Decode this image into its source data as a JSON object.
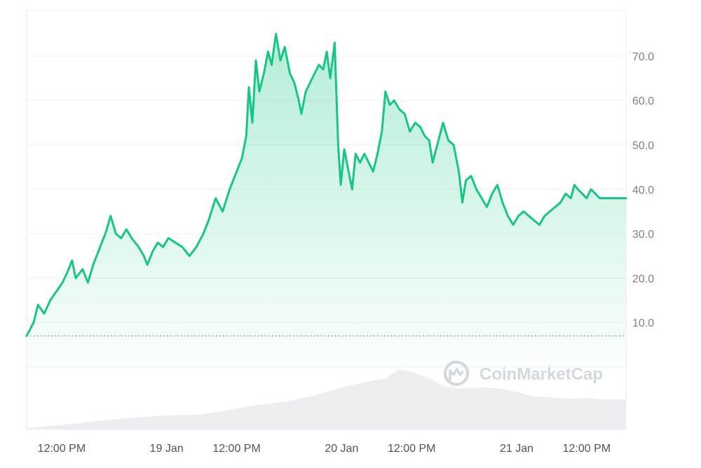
{
  "watermark": {
    "brand": "CoinMarketCap",
    "logo_icon": "coinmarketcap-logo-icon"
  },
  "colors": {
    "line": "#16c784",
    "area_top": "#16c784",
    "baseline": "#8a939f",
    "volume": "#eceef2",
    "grid": "#eff1f4",
    "axis_text": "#7a8392"
  },
  "chart_data": {
    "type": "area",
    "title": "",
    "xlabel": "",
    "ylabel": "",
    "ylim": [
      0,
      80
    ],
    "x_range": [
      0,
      68.5
    ],
    "y_ticks": [
      10,
      20,
      30,
      40,
      50,
      60,
      70
    ],
    "y_tick_labels": [
      "10.0",
      "20.0",
      "30.0",
      "40.0",
      "50.0",
      "60.0",
      "70.0"
    ],
    "x_ticks": [
      {
        "label": "12:00 PM",
        "t": 4
      },
      {
        "label": "19 Jan",
        "t": 16
      },
      {
        "label": "12:00 PM",
        "t": 24
      },
      {
        "label": "20 Jan",
        "t": 36
      },
      {
        "label": "12:00 PM",
        "t": 44
      },
      {
        "label": "21 Jan",
        "t": 56
      },
      {
        "label": "12:00 PM",
        "t": 64
      }
    ],
    "baseline_value": 7,
    "grid": true,
    "series": [
      {
        "points": [
          [
            0,
            7
          ],
          [
            0.8,
            10
          ],
          [
            1.3,
            14
          ],
          [
            2,
            12
          ],
          [
            2.7,
            15
          ],
          [
            3.4,
            17
          ],
          [
            4.1,
            19
          ],
          [
            4.8,
            22
          ],
          [
            5.2,
            24
          ],
          [
            5.6,
            20
          ],
          [
            6.4,
            22
          ],
          [
            7,
            19
          ],
          [
            7.6,
            23
          ],
          [
            8.4,
            27
          ],
          [
            9,
            30
          ],
          [
            9.6,
            34
          ],
          [
            10.2,
            30
          ],
          [
            10.8,
            29
          ],
          [
            11.4,
            31
          ],
          [
            12,
            29
          ],
          [
            12.8,
            27
          ],
          [
            13.4,
            25
          ],
          [
            13.8,
            23
          ],
          [
            14.4,
            26
          ],
          [
            15,
            28
          ],
          [
            15.6,
            27
          ],
          [
            16.2,
            29
          ],
          [
            17,
            28
          ],
          [
            17.8,
            27
          ],
          [
            18.6,
            25
          ],
          [
            19.4,
            27
          ],
          [
            20.2,
            30
          ],
          [
            20.8,
            33
          ],
          [
            21.6,
            38
          ],
          [
            22.4,
            35
          ],
          [
            23.2,
            40
          ],
          [
            24,
            44
          ],
          [
            24.6,
            47
          ],
          [
            25.1,
            52
          ],
          [
            25.4,
            63
          ],
          [
            25.8,
            55
          ],
          [
            26.2,
            69
          ],
          [
            26.6,
            62
          ],
          [
            27.1,
            66
          ],
          [
            27.6,
            71
          ],
          [
            28,
            68
          ],
          [
            28.5,
            75
          ],
          [
            29,
            69
          ],
          [
            29.5,
            72
          ],
          [
            30.1,
            66
          ],
          [
            30.6,
            64
          ],
          [
            31.1,
            60
          ],
          [
            31.4,
            57
          ],
          [
            31.9,
            62
          ],
          [
            32.4,
            64
          ],
          [
            32.9,
            66
          ],
          [
            33.4,
            68
          ],
          [
            33.9,
            67
          ],
          [
            34.3,
            71
          ],
          [
            34.7,
            65
          ],
          [
            35.2,
            73
          ],
          [
            35.6,
            50
          ],
          [
            35.9,
            41
          ],
          [
            36.3,
            49
          ],
          [
            36.8,
            44
          ],
          [
            37.2,
            40
          ],
          [
            37.6,
            48
          ],
          [
            38.1,
            46
          ],
          [
            38.6,
            48
          ],
          [
            39.1,
            46
          ],
          [
            39.6,
            44
          ],
          [
            40.1,
            48
          ],
          [
            40.6,
            53
          ],
          [
            41,
            62
          ],
          [
            41.5,
            59
          ],
          [
            42,
            60
          ],
          [
            42.6,
            58
          ],
          [
            43.2,
            57
          ],
          [
            43.8,
            53
          ],
          [
            44.4,
            55
          ],
          [
            45,
            54
          ],
          [
            45.5,
            52
          ],
          [
            46,
            51
          ],
          [
            46.4,
            46
          ],
          [
            46.8,
            49
          ],
          [
            47.2,
            52
          ],
          [
            47.6,
            55
          ],
          [
            48.2,
            51
          ],
          [
            48.8,
            50
          ],
          [
            49.4,
            44
          ],
          [
            49.8,
            37
          ],
          [
            50.2,
            42
          ],
          [
            50.8,
            43
          ],
          [
            51.4,
            40
          ],
          [
            52,
            38
          ],
          [
            52.6,
            36
          ],
          [
            53.2,
            39
          ],
          [
            53.8,
            41
          ],
          [
            54.4,
            37
          ],
          [
            55,
            34
          ],
          [
            55.6,
            32
          ],
          [
            56.2,
            34
          ],
          [
            56.8,
            35
          ],
          [
            57.4,
            34
          ],
          [
            58,
            33
          ],
          [
            58.6,
            32
          ],
          [
            59.2,
            34
          ],
          [
            59.8,
            35
          ],
          [
            60.4,
            36
          ],
          [
            61,
            37
          ],
          [
            61.6,
            39
          ],
          [
            62.2,
            38
          ],
          [
            62.6,
            41
          ],
          [
            63,
            40
          ],
          [
            63.5,
            39
          ],
          [
            64,
            38
          ],
          [
            64.5,
            40
          ],
          [
            65,
            39
          ],
          [
            65.5,
            38
          ],
          [
            66,
            38
          ],
          [
            66.5,
            38
          ],
          [
            67,
            38
          ],
          [
            67.5,
            38
          ],
          [
            68,
            38
          ],
          [
            68.5,
            38
          ]
        ]
      }
    ],
    "volume": {
      "points": [
        [
          0,
          0.02
        ],
        [
          5,
          0.08
        ],
        [
          10,
          0.15
        ],
        [
          15,
          0.2
        ],
        [
          20,
          0.22
        ],
        [
          23,
          0.28
        ],
        [
          26,
          0.35
        ],
        [
          28,
          0.38
        ],
        [
          30,
          0.42
        ],
        [
          33,
          0.5
        ],
        [
          35,
          0.58
        ],
        [
          37,
          0.65
        ],
        [
          39,
          0.7
        ],
        [
          41,
          0.75
        ],
        [
          42.5,
          0.88
        ],
        [
          44,
          0.85
        ],
        [
          46,
          0.75
        ],
        [
          48,
          0.62
        ],
        [
          50,
          0.6
        ],
        [
          52,
          0.62
        ],
        [
          54,
          0.6
        ],
        [
          56,
          0.55
        ],
        [
          58,
          0.48
        ],
        [
          60,
          0.47
        ],
        [
          62,
          0.45
        ],
        [
          64,
          0.46
        ],
        [
          66,
          0.44
        ],
        [
          68.5,
          0.44
        ]
      ]
    }
  }
}
